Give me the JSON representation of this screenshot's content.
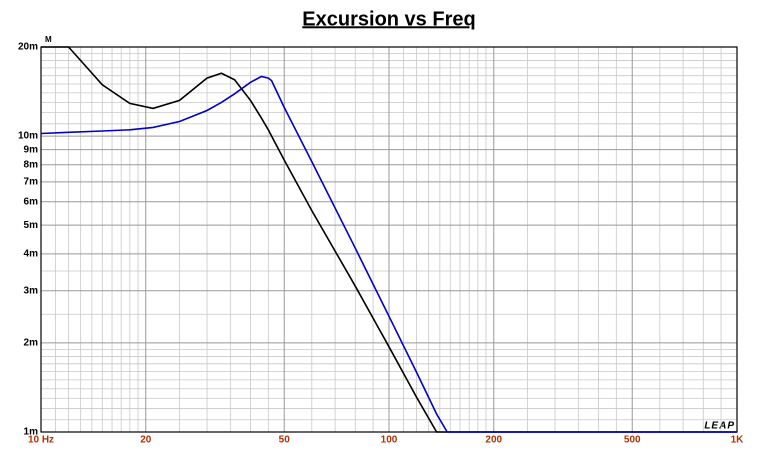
{
  "chart_data": {
    "type": "line",
    "title": "Excursion vs Freq",
    "y_unit_label": "M",
    "watermark": "LEAP",
    "x": [
      10,
      12,
      15,
      18,
      21,
      25,
      30,
      33,
      36,
      40,
      43,
      45,
      46,
      50,
      60,
      80,
      100,
      120,
      137,
      147,
      200,
      500,
      1000
    ],
    "series": [
      {
        "color": "#000000",
        "values": [
          20,
          20,
          14.9,
          12.9,
          12.4,
          13.2,
          15.7,
          16.3,
          15.5,
          13.2,
          11.5,
          10.5,
          10.0,
          8.3,
          5.6,
          3.11,
          1.94,
          1.31,
          1,
          1,
          1,
          1,
          1
        ]
      },
      {
        "color": "#0000c8",
        "values": [
          10.2,
          10.3,
          10.4,
          10.5,
          10.7,
          11.2,
          12.2,
          13.0,
          13.9,
          15.2,
          15.9,
          15.7,
          15.4,
          12.5,
          8.2,
          4.18,
          2.46,
          1.59,
          1.15,
          1,
          1,
          1,
          1
        ]
      }
    ],
    "xlog": true,
    "ylog": true,
    "xlim": [
      10,
      1000
    ],
    "ylim": [
      1,
      20
    ],
    "xticks": [
      {
        "value": 10,
        "label": "10 Hz"
      },
      20,
      50,
      100,
      200,
      500,
      {
        "value": 1000,
        "label": "1K"
      }
    ],
    "yticks": [
      {
        "value": 1,
        "label": "1m"
      },
      {
        "value": 2,
        "label": "2m"
      },
      {
        "value": 3,
        "label": "3m"
      },
      {
        "value": 4,
        "label": "4m"
      },
      {
        "value": 5,
        "label": "5m"
      },
      {
        "value": 6,
        "label": "6m"
      },
      {
        "value": 7,
        "label": "7m"
      },
      {
        "value": 8,
        "label": "8m"
      },
      {
        "value": 9,
        "label": "9m"
      },
      {
        "value": 10,
        "label": "10m"
      },
      {
        "value": 20,
        "label": "20m"
      }
    ],
    "xminorticks": [
      11,
      12,
      13,
      14,
      15,
      16,
      17,
      18,
      19,
      25,
      30,
      35,
      40,
      45,
      60,
      70,
      80,
      90,
      110,
      120,
      130,
      140,
      150,
      160,
      170,
      180,
      190,
      250,
      300,
      350,
      400,
      450,
      600,
      700,
      800,
      900
    ],
    "yminorticks": [
      1.1,
      1.2,
      1.3,
      1.4,
      1.5,
      1.6,
      1.7,
      1.8,
      1.9,
      2.5,
      3.5,
      11,
      12,
      13,
      14,
      15,
      16,
      17,
      18,
      19
    ],
    "grid": true
  }
}
